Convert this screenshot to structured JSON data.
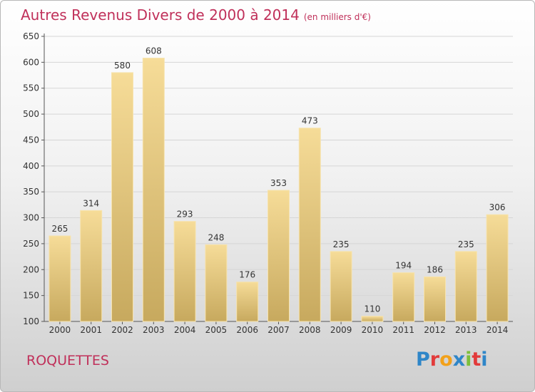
{
  "title": "Autres Revenus Divers de 2000 à 2014",
  "subtitle": "(en milliers d'€)",
  "commune": "ROQUETTES",
  "logo": {
    "letters": [
      {
        "char": "P",
        "color": "#2f86c8"
      },
      {
        "char": "r",
        "color": "#e23b3b"
      },
      {
        "char": "o",
        "color": "#f2a11a"
      },
      {
        "char": "x",
        "color": "#2f86c8"
      },
      {
        "char": "i",
        "color": "#7cbf3b"
      },
      {
        "char": "t",
        "color": "#e23b3b"
      },
      {
        "char": "i",
        "color": "#2f86c8"
      }
    ]
  },
  "chart_data": {
    "type": "bar",
    "categories": [
      "2000",
      "2001",
      "2002",
      "2003",
      "2004",
      "2005",
      "2006",
      "2007",
      "2008",
      "2009",
      "2010",
      "2011",
      "2012",
      "2013",
      "2014"
    ],
    "values": [
      265,
      314,
      580,
      608,
      293,
      248,
      176,
      353,
      473,
      235,
      110,
      194,
      186,
      235,
      306
    ],
    "ylim": [
      100,
      650
    ],
    "yticks": [
      100,
      150,
      200,
      250,
      300,
      350,
      400,
      450,
      500,
      550,
      600,
      650
    ],
    "grid": true,
    "bar_color": "#e6c77f",
    "text_color": "#c0305a"
  }
}
